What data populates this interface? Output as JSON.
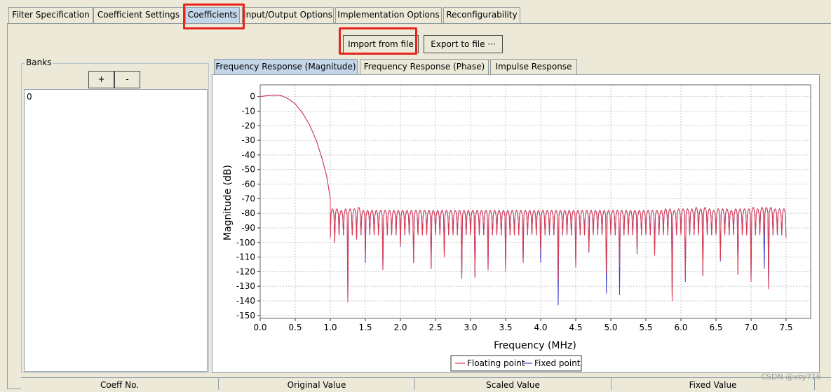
{
  "tabs": [
    {
      "label": "Filter Specification"
    },
    {
      "label": "Coefficient Settings"
    },
    {
      "label": "Coefficients"
    },
    {
      "label": "Input/Output Options"
    },
    {
      "label": "Implementation Options"
    },
    {
      "label": "Reconfigurability"
    }
  ],
  "active_tab": "Coefficients",
  "toolbar": {
    "import_label": "Import from file",
    "export_label": "Export to file ···"
  },
  "banks": {
    "title": "Banks",
    "add_label": "+",
    "remove_label": "-",
    "items": [
      "0"
    ]
  },
  "plot_tabs": [
    {
      "label": "Frequency Response (Magnitude)"
    },
    {
      "label": "Frequency Response (Phase)"
    },
    {
      "label": "Impulse Response"
    }
  ],
  "table": {
    "headers": [
      "Coeff No.",
      "Original Value",
      "Scaled Value",
      "Fixed Value"
    ]
  },
  "watermark": "CSDN @xsy716",
  "colors": {
    "highlight": "#e8231b",
    "floating": "#e03a4a",
    "fixed": "#3a3ad0"
  },
  "chart_data": {
    "type": "line",
    "xlabel": "Frequency (MHz)",
    "ylabel": "Magnitude (dB)",
    "xlim": [
      0,
      7.85
    ],
    "ylim": [
      -152,
      8
    ],
    "x_ticks": [
      "0.0",
      "0.5",
      "1.0",
      "1.5",
      "2.0",
      "2.5",
      "3.0",
      "3.5",
      "4.0",
      "4.5",
      "5.0",
      "5.5",
      "6.0",
      "6.5",
      "7.0",
      "7.5"
    ],
    "y_ticks": [
      "0",
      "-10",
      "-20",
      "-30",
      "-40",
      "-50",
      "-60",
      "-70",
      "-80",
      "-90",
      "-100",
      "-110",
      "-120",
      "-130",
      "-140",
      "-150"
    ],
    "grid": true,
    "legend_position": "bottom-center",
    "series": [
      {
        "name": "Floating point",
        "color": "#e03a4a",
        "passband": [
          [
            0.0,
            0.0
          ],
          [
            0.1,
            0.6
          ],
          [
            0.2,
            1.0
          ],
          [
            0.3,
            0.6
          ],
          [
            0.4,
            -1.5
          ],
          [
            0.5,
            -5
          ],
          [
            0.6,
            -11
          ],
          [
            0.7,
            -19
          ],
          [
            0.8,
            -30
          ],
          [
            0.88,
            -42
          ],
          [
            0.95,
            -55
          ],
          [
            1.0,
            -70
          ]
        ],
        "lobe_start": 1.0,
        "lobe_spacing": 0.0625,
        "lobe_peaks": [
          -77,
          -77,
          -78,
          -77,
          -77,
          -77,
          -76,
          -78,
          -78,
          -78,
          -78,
          -78,
          -78,
          -78,
          -78,
          -78,
          -78,
          -78,
          -78,
          -78,
          -78,
          -78,
          -78,
          -78,
          -78,
          -78,
          -78,
          -78,
          -78,
          -78,
          -78,
          -78,
          -78,
          -78,
          -78,
          -78,
          -78,
          -78,
          -78,
          -78,
          -78,
          -78,
          -78,
          -78,
          -78,
          -78,
          -78,
          -78,
          -78,
          -78,
          -78,
          -78,
          -78,
          -78,
          -78,
          -78,
          -78,
          -78,
          -78,
          -78,
          -78,
          -78,
          -78,
          -78,
          -78,
          -78,
          -78,
          -78,
          -78,
          -78,
          -78,
          -78,
          -78,
          -78,
          -78,
          -78,
          -77,
          -77,
          -78,
          -77,
          -77,
          -77,
          -77,
          -76,
          -77,
          -76,
          -77,
          -78,
          -77,
          -77,
          -77,
          -78,
          -77,
          -77,
          -77,
          -77,
          -76,
          -77,
          -76,
          -76,
          -76,
          -77
        ],
        "nulls": [
          [
            1.02,
            -97
          ],
          [
            1.09,
            -100
          ],
          [
            1.22,
            -141
          ],
          [
            1.37,
            -98
          ],
          [
            1.53,
            -110
          ],
          [
            1.77,
            -119
          ],
          [
            1.98,
            -102
          ],
          [
            2.18,
            -114
          ],
          [
            2.43,
            -118
          ],
          [
            2.63,
            -110
          ],
          [
            2.85,
            -125
          ],
          [
            3.08,
            -124
          ],
          [
            3.28,
            -119
          ],
          [
            3.52,
            -120
          ],
          [
            3.73,
            -114
          ],
          [
            3.98,
            -106
          ],
          [
            4.22,
            -126
          ],
          [
            4.48,
            -117
          ],
          [
            4.68,
            -106
          ],
          [
            4.92,
            -121
          ],
          [
            5.15,
            -117
          ],
          [
            5.38,
            -106
          ],
          [
            5.62,
            -109
          ],
          [
            5.88,
            -140
          ],
          [
            6.07,
            -127
          ],
          [
            6.32,
            -123
          ],
          [
            6.55,
            -112
          ],
          [
            6.8,
            -122
          ],
          [
            7.03,
            -127
          ],
          [
            7.25,
            -132
          ],
          [
            7.5,
            -97
          ]
        ]
      },
      {
        "name": "Fixed point",
        "color": "#3a3ad0",
        "nulls": [
          [
            1.53,
            -114
          ],
          [
            1.98,
            -103
          ],
          [
            2.63,
            -110
          ],
          [
            3.52,
            -117
          ],
          [
            3.98,
            -114
          ],
          [
            4.25,
            -143
          ],
          [
            4.68,
            -107
          ],
          [
            4.92,
            -135
          ],
          [
            5.15,
            -136
          ],
          [
            5.38,
            -108
          ],
          [
            6.55,
            -113
          ],
          [
            7.2,
            -118
          ]
        ]
      }
    ],
    "final_x": 7.5
  }
}
